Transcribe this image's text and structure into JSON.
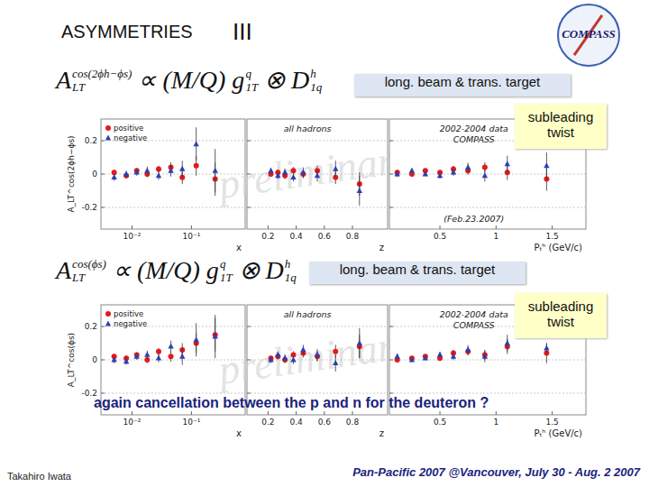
{
  "slide": {
    "title": "ASYMMETRIES",
    "title_numeral": "III",
    "logo": "COMPASS",
    "sections": [
      {
        "formula": [
          {
            "base": "A",
            "sup": "cos(2ϕh−ϕs)",
            "sub": "LT"
          },
          {
            "base": " ∝ (M/Q) g",
            "sup": "q",
            "sub": "1T"
          },
          {
            "base": " ⊗ D",
            "sup": "h",
            "sub": "1q"
          }
        ],
        "beam": "long. beam & trans. target",
        "twist": "subleading twist"
      },
      {
        "formula": [
          {
            "base": "A",
            "sup": "cos(ϕs)",
            "sub": "LT"
          },
          {
            "base": " ∝ (M/Q) g",
            "sup": "q",
            "sub": "1T"
          },
          {
            "base": " ⊗ D",
            "sup": "h",
            "sub": "1q"
          }
        ],
        "beam": "long. beam & trans. target",
        "twist": "subleading twist"
      }
    ],
    "watermark": "preliminary",
    "note": "again cancellation between the p and n for the deuteron ?",
    "author": "Takahiro Iwata",
    "venue": "Pan-Pacific 2007 @Vancouver, July 30 - Aug. 2 2007"
  },
  "chart_data": [
    {
      "type": "scatter",
      "log": "x",
      "xlim": [
        0.003,
        0.8
      ],
      "xticks": [
        {
          "value": 0.01,
          "label": "10⁻²"
        },
        {
          "value": 0.1,
          "label": "10⁻¹"
        }
      ],
      "x_label": "x",
      "ylim": [
        -0.33,
        0.33
      ],
      "yticks": [
        -0.2,
        0,
        0.2
      ],
      "y_label": "A_LT^cos(2ϕh−ϕs)",
      "grid": true,
      "legend": "top-left",
      "x": [
        0.005,
        0.008,
        0.012,
        0.018,
        0.028,
        0.045,
        0.07,
        0.12,
        0.25
      ],
      "series": [
        {
          "name": "positive",
          "color": "#e41a1c",
          "marker": "circle",
          "values": [
            0.01,
            -0.01,
            0.02,
            0,
            0.03,
            0.04,
            -0.02,
            0.05,
            -0.03
          ],
          "errors": [
            0.015,
            0.015,
            0.015,
            0.02,
            0.02,
            0.03,
            0.04,
            0.06,
            0.1
          ]
        },
        {
          "name": "negative",
          "color": "#2c3fb8",
          "marker": "triangle",
          "values": [
            -0.02,
            0,
            0.01,
            0.02,
            -0.01,
            0.02,
            0.03,
            0.18,
            0.02
          ],
          "errors": [
            0.02,
            0.02,
            0.02,
            0.025,
            0.025,
            0.035,
            0.05,
            0.1,
            0.13
          ]
        }
      ]
    },
    {
      "type": "scatter",
      "xlim": [
        0.05,
        1.05
      ],
      "xticks": [
        0.2,
        0.4,
        0.6,
        0.8
      ],
      "x_label": "z",
      "ylim": [
        -0.33,
        0.33
      ],
      "yticks": [
        -0.2,
        0,
        0.2
      ],
      "grid": true,
      "tick_labels": "x",
      "annotations": [
        "all hadrons"
      ],
      "x": [
        0.22,
        0.27,
        0.32,
        0.38,
        0.45,
        0.55,
        0.68,
        0.85
      ],
      "series": [
        {
          "color": "#e41a1c",
          "marker": "circle",
          "values": [
            0,
            0.01,
            -0.01,
            0.02,
            0,
            0.02,
            -0.02,
            -0.06
          ],
          "errors": [
            0.015,
            0.018,
            0.02,
            0.022,
            0.025,
            0.03,
            0.04,
            0.07
          ]
        },
        {
          "color": "#2c3fb8",
          "marker": "triangle",
          "values": [
            0.02,
            -0.01,
            0.01,
            -0.02,
            0.01,
            -0.01,
            0.03,
            -0.1
          ],
          "errors": [
            0.018,
            0.02,
            0.022,
            0.025,
            0.03,
            0.035,
            0.05,
            0.09
          ]
        }
      ]
    },
    {
      "type": "scatter",
      "xlim": [
        0.05,
        1.8
      ],
      "xticks": [
        0.5,
        1,
        1.5
      ],
      "x_label": "Pₜʰ (GeV/c)",
      "ylim": [
        -0.33,
        0.33
      ],
      "yticks": [
        -0.2,
        0,
        0.2
      ],
      "grid": true,
      "tick_labels": "x",
      "annotations": [
        "2002-2004 data",
        "COMPASS",
        "(Feb.23.2007)"
      ],
      "x": [
        0.12,
        0.25,
        0.37,
        0.5,
        0.62,
        0.75,
        0.9,
        1.1,
        1.45
      ],
      "series": [
        {
          "color": "#e41a1c",
          "marker": "circle",
          "values": [
            0.01,
            0,
            0.02,
            0.01,
            0.03,
            0.02,
            0.04,
            0.01,
            -0.03
          ],
          "errors": [
            0.015,
            0.012,
            0.012,
            0.015,
            0.02,
            0.025,
            0.03,
            0.045,
            0.07
          ]
        },
        {
          "color": "#2c3fb8",
          "marker": "triangle",
          "values": [
            0,
            0.02,
            0,
            -0.01,
            0.01,
            0.04,
            -0.01,
            0.06,
            0.05
          ],
          "errors": [
            0.018,
            0.014,
            0.014,
            0.018,
            0.022,
            0.028,
            0.035,
            0.05,
            0.08
          ]
        }
      ]
    },
    {
      "type": "scatter",
      "log": "x",
      "xlim": [
        0.003,
        0.8
      ],
      "xticks": [
        {
          "value": 0.01,
          "label": "10⁻²"
        },
        {
          "value": 0.1,
          "label": "10⁻¹"
        }
      ],
      "x_label": "x",
      "ylim": [
        -0.33,
        0.33
      ],
      "yticks": [
        -0.2,
        0,
        0.2
      ],
      "y_label": "A_LT^cos(ϕs)",
      "grid": true,
      "legend": "top-left",
      "x": [
        0.005,
        0.008,
        0.012,
        0.018,
        0.028,
        0.045,
        0.07,
        0.12,
        0.25
      ],
      "series": [
        {
          "name": "positive",
          "color": "#e41a1c",
          "marker": "circle",
          "values": [
            0.02,
            0.01,
            0.03,
            0,
            0.05,
            0.02,
            0.06,
            0.1,
            0.15
          ],
          "errors": [
            0.015,
            0.015,
            0.015,
            0.02,
            0.02,
            0.03,
            0.04,
            0.06,
            0.1
          ]
        },
        {
          "name": "negative",
          "color": "#2c3fb8",
          "marker": "triangle",
          "values": [
            0,
            -0.01,
            0.02,
            0.03,
            0.01,
            0.08,
            0.02,
            0.12,
            0.14
          ],
          "errors": [
            0.02,
            0.02,
            0.02,
            0.025,
            0.025,
            0.035,
            0.05,
            0.1,
            0.13
          ]
        }
      ]
    },
    {
      "type": "scatter",
      "xlim": [
        0.05,
        1.05
      ],
      "xticks": [
        0.2,
        0.4,
        0.6,
        0.8
      ],
      "x_label": "z",
      "ylim": [
        -0.33,
        0.33
      ],
      "yticks": [
        -0.2,
        0,
        0.2
      ],
      "grid": true,
      "tick_labels": "x",
      "annotations": [
        "all hadrons"
      ],
      "x": [
        0.22,
        0.27,
        0.32,
        0.38,
        0.45,
        0.55,
        0.68,
        0.85
      ],
      "series": [
        {
          "color": "#e41a1c",
          "marker": "circle",
          "values": [
            0.01,
            0.02,
            0,
            0.03,
            0.04,
            0.02,
            0.05,
            0.08
          ],
          "errors": [
            0.015,
            0.018,
            0.02,
            0.022,
            0.025,
            0.03,
            0.04,
            0.07
          ]
        },
        {
          "color": "#2c3fb8",
          "marker": "triangle",
          "values": [
            0,
            0.03,
            0.01,
            0,
            0.06,
            0.03,
            -0.02,
            0.1
          ],
          "errors": [
            0.018,
            0.02,
            0.022,
            0.025,
            0.03,
            0.035,
            0.05,
            0.09
          ]
        }
      ]
    },
    {
      "type": "scatter",
      "xlim": [
        0.05,
        1.8
      ],
      "xticks": [
        0.5,
        1,
        1.5
      ],
      "x_label": "Pₜʰ (GeV/c)",
      "ylim": [
        -0.33,
        0.33
      ],
      "yticks": [
        -0.2,
        0,
        0.2
      ],
      "grid": true,
      "tick_labels": "x",
      "annotations": [
        "2002-2004 data",
        "COMPASS"
      ],
      "x": [
        0.12,
        0.25,
        0.37,
        0.5,
        0.62,
        0.75,
        0.9,
        1.1,
        1.45
      ],
      "series": [
        {
          "color": "#e41a1c",
          "marker": "circle",
          "values": [
            0,
            0.01,
            0.02,
            0.01,
            0.04,
            0.05,
            0.03,
            0.08,
            0.04
          ],
          "errors": [
            0.015,
            0.012,
            0.012,
            0.015,
            0.02,
            0.025,
            0.03,
            0.045,
            0.06
          ]
        },
        {
          "color": "#2c3fb8",
          "marker": "triangle",
          "values": [
            0.02,
            0,
            0.01,
            0.03,
            0.02,
            0.06,
            0.02,
            0.1,
            0.07
          ],
          "errors": [
            0.018,
            0.014,
            0.014,
            0.018,
            0.022,
            0.028,
            0.035,
            0.05,
            0.03
          ]
        }
      ]
    }
  ]
}
